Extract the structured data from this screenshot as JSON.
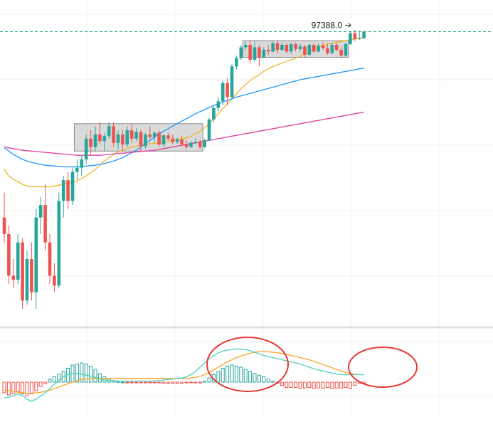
{
  "chart_data": {
    "type": "candlestick",
    "last_price_label": "97388.0",
    "colors": {
      "up": "#26a69a",
      "down": "#ef5350",
      "ma_fast": "#f0b429",
      "ma_mid": "#2196f3",
      "ma_slow": "#e040a0",
      "macd_line": "#4dd0c0",
      "signal_line": "#f5a623",
      "range_box": "#d4d4d4",
      "annotation": "#e53935",
      "last_price_line": "#26a69a"
    },
    "candles_ohlc": [
      [
        75000,
        78000,
        72000,
        73000
      ],
      [
        73000,
        74000,
        67000,
        68000
      ],
      [
        68000,
        70000,
        66500,
        67500
      ],
      [
        67500,
        73000,
        67000,
        72000
      ],
      [
        72000,
        72500,
        64000,
        65000
      ],
      [
        65000,
        71000,
        64500,
        70000
      ],
      [
        70000,
        72000,
        65000,
        66000
      ],
      [
        66000,
        76000,
        64000,
        75000
      ],
      [
        75000,
        77500,
        73000,
        76500
      ],
      [
        76500,
        79000,
        71000,
        72000
      ],
      [
        72000,
        73000,
        67000,
        68000
      ],
      [
        68000,
        69500,
        66000,
        66800
      ],
      [
        66800,
        78000,
        66500,
        77000
      ],
      [
        77000,
        80000,
        75000,
        79500
      ],
      [
        79500,
        80500,
        76000,
        77000
      ],
      [
        77000,
        81000,
        76500,
        80500
      ],
      [
        80500,
        82000,
        79500,
        81000
      ],
      [
        81000,
        82500,
        80000,
        82000
      ],
      [
        82000,
        85000,
        81500,
        84500
      ],
      [
        84500,
        85500,
        82500,
        83500
      ],
      [
        83500,
        86000,
        83000,
        85000
      ],
      [
        85000,
        86500,
        83800,
        84200
      ],
      [
        84200,
        85200,
        83000,
        84800
      ],
      [
        84800,
        86500,
        84500,
        86000
      ],
      [
        86000,
        86500,
        83500,
        84000
      ],
      [
        84000,
        85500,
        83200,
        85000
      ],
      [
        85000,
        85500,
        83000,
        83800
      ],
      [
        83800,
        86000,
        83500,
        85500
      ],
      [
        85500,
        86300,
        84000,
        84500
      ],
      [
        84500,
        85800,
        84200,
        85300
      ],
      [
        85300,
        85600,
        83000,
        83600
      ],
      [
        83600,
        85200,
        83300,
        85000
      ],
      [
        85000,
        86000,
        84500,
        84700
      ],
      [
        84700,
        85400,
        84000,
        85200
      ],
      [
        85200,
        85500,
        83500,
        83800
      ],
      [
        83800,
        85000,
        83600,
        84900
      ],
      [
        84900,
        85200,
        84300,
        84500
      ],
      [
        84500,
        85000,
        83800,
        84100
      ],
      [
        84100,
        84600,
        83900,
        84400
      ],
      [
        84400,
        84800,
        83600,
        83800
      ],
      [
        83800,
        84300,
        83200,
        83500
      ],
      [
        83500,
        84200,
        83400,
        84000
      ],
      [
        84000,
        84500,
        83800,
        84100
      ],
      [
        84100,
        84400,
        83300,
        83500
      ],
      [
        83500,
        84500,
        83400,
        84300
      ],
      [
        84300,
        87000,
        84200,
        86800
      ],
      [
        86800,
        88500,
        86500,
        88200
      ],
      [
        88200,
        89500,
        87800,
        89000
      ],
      [
        89000,
        91500,
        88500,
        91200
      ],
      [
        91200,
        91800,
        88500,
        89500
      ],
      [
        89500,
        93500,
        89200,
        93200
      ],
      [
        93200,
        94500,
        92800,
        94200
      ],
      [
        94200,
        95800,
        94000,
        95500
      ],
      [
        95500,
        96200,
        95200,
        95800
      ],
      [
        95800,
        96400,
        93500,
        94000
      ],
      [
        94000,
        96300,
        93800,
        95500
      ],
      [
        95500,
        95800,
        93200,
        94300
      ],
      [
        94300,
        95500,
        94200,
        95200
      ],
      [
        95200,
        95800,
        94600,
        95000
      ],
      [
        95000,
        96200,
        94900,
        96000
      ],
      [
        96000,
        96300,
        94800,
        95200
      ],
      [
        95200,
        96100,
        95000,
        95800
      ],
      [
        95800,
        96000,
        94800,
        95000
      ],
      [
        95000,
        96000,
        94700,
        95900
      ],
      [
        95900,
        96100,
        95000,
        95300
      ],
      [
        95300,
        95900,
        95000,
        95600
      ],
      [
        95600,
        95800,
        94300,
        94600
      ],
      [
        94600,
        95900,
        94500,
        95800
      ],
      [
        95800,
        96000,
        94800,
        95000
      ],
      [
        95000,
        96000,
        94900,
        95700
      ],
      [
        95700,
        96100,
        95200,
        95400
      ],
      [
        95400,
        95900,
        94600,
        94800
      ],
      [
        94800,
        96000,
        94700,
        95800
      ],
      [
        95800,
        96000,
        95000,
        95200
      ],
      [
        95200,
        95600,
        94300,
        94500
      ],
      [
        94500,
        96100,
        94400,
        95900
      ],
      [
        95900,
        97500,
        95800,
        97200
      ],
      [
        97200,
        97600,
        96200,
        96500
      ],
      [
        96500,
        97500,
        96400,
        96600
      ],
      [
        96600,
        97500,
        96500,
        97388
      ]
    ],
    "range_boxes": [
      {
        "start_index": 16,
        "end_index": 43,
        "price_low": 83000,
        "price_high": 86300
      },
      {
        "start_index": 53,
        "end_index": 75,
        "price_low": 94300,
        "price_high": 96300
      }
    ],
    "moving_averages": [
      {
        "role": "fast",
        "values": [
          80800,
          80000,
          79600,
          79300,
          79000,
          78800,
          78700,
          78700,
          78700,
          78700,
          78700,
          78800,
          78900,
          79000,
          79100,
          79200,
          79400,
          79700,
          80000,
          80400,
          80800,
          81300,
          81800,
          82200,
          82600,
          82900,
          83100,
          83300,
          83500,
          83600,
          83700,
          83800,
          83900,
          83900,
          84000,
          84100,
          84200,
          84300,
          84400,
          84500,
          84600,
          84800,
          85100,
          85400,
          85800,
          86300,
          86900,
          87500,
          88100,
          88700,
          89300,
          89900,
          90500,
          91000,
          91500,
          91900,
          92200,
          92600,
          92900,
          93200,
          93400,
          93600,
          93800,
          94000,
          94200,
          94400,
          94700,
          95000,
          95300,
          95500,
          95700,
          95900,
          96000,
          96100,
          96200,
          96300,
          96400,
          96500,
          96600,
          96700
        ]
      },
      {
        "role": "mid",
        "values": [
          83400,
          83000,
          82600,
          82300,
          82000,
          81800,
          81650,
          81500,
          81400,
          81300,
          81250,
          81200,
          81150,
          81100,
          81100,
          81100,
          81100,
          81150,
          81200,
          81250,
          81300,
          81400,
          81500,
          81650,
          81800,
          82000,
          82200,
          82500,
          82800,
          83100,
          83500,
          83900,
          84300,
          84700,
          85100,
          85400,
          85700,
          86000,
          86300,
          86600,
          86900,
          87200,
          87500,
          87750,
          88000,
          88250,
          88500,
          88700,
          88900,
          89100,
          89300,
          89500,
          89650,
          89800,
          89950,
          90100,
          90250,
          90400,
          90550,
          90700,
          90850,
          91000,
          91150,
          91300,
          91450,
          91600,
          91700,
          91800,
          91900,
          92000,
          92100,
          92200,
          92300,
          92400,
          92500,
          92600,
          92700,
          92800,
          92900,
          93000
        ]
      },
      {
        "role": "slow",
        "values": [
          83500,
          83400,
          83300,
          83200,
          83100,
          83050,
          83000,
          82950,
          82900,
          82850,
          82800,
          82750,
          82700,
          82650,
          82600,
          82550,
          82500,
          82500,
          82500,
          82500,
          82500,
          82500,
          82550,
          82600,
          82650,
          82700,
          82750,
          82800,
          82850,
          82900,
          82950,
          83000,
          83050,
          83100,
          83200,
          83300,
          83400,
          83500,
          83600,
          83700,
          83800,
          83900,
          84000,
          84100,
          84200,
          84300,
          84400,
          84500,
          84600,
          84700,
          84800,
          84900,
          85000,
          85100,
          85200,
          85300,
          85400,
          85500,
          85600,
          85700,
          85800,
          85900,
          86000,
          86100,
          86200,
          86300,
          86400,
          86500,
          86600,
          86700,
          86800,
          86900,
          87000,
          87100,
          87200,
          87300,
          87400,
          87500,
          87600,
          87700
        ]
      }
    ],
    "macd": {
      "histogram": [
        -2.0,
        -2.4,
        -2.2,
        -1.8,
        -2.2,
        -2.6,
        -2.2,
        -1.6,
        -0.8,
        -0.3,
        0.5,
        1.0,
        1.5,
        2.0,
        2.6,
        3.2,
        3.4,
        3.6,
        3.4,
        3.0,
        2.4,
        1.6,
        1.0,
        0.6,
        0.3,
        0.1,
        0.0,
        -0.1,
        -0.1,
        -0.1,
        -0.1,
        -0.1,
        -0.1,
        -0.1,
        -0.15,
        -0.2,
        -0.2,
        -0.2,
        -0.2,
        -0.2,
        -0.15,
        -0.1,
        -0.1,
        -0.1,
        0.2,
        0.8,
        1.4,
        2.0,
        2.6,
        3.0,
        3.2,
        3.0,
        2.8,
        2.4,
        2.0,
        1.6,
        1.3,
        1.0,
        0.6,
        0.2,
        -0.2,
        -0.6,
        -1.0,
        -1.0,
        -1.0,
        -1.2,
        -1.1,
        -1.0,
        -1.2,
        -1.1,
        -1.1,
        -1.0,
        -1.2,
        -1.1,
        -1.1,
        -1.0,
        -1.2,
        -0.6,
        -0.2,
        -0.2
      ],
      "macd_line": [
        -3.0,
        -2.8,
        -2.6,
        -2.2,
        -2.5,
        -3.2,
        -3.6,
        -3.2,
        -2.6,
        -2.0,
        -1.2,
        -0.4,
        0.4,
        1.0,
        1.4,
        1.6,
        1.6,
        1.5,
        1.3,
        1.1,
        0.9,
        0.6,
        0.4,
        0.3,
        0.3,
        0.2,
        0.2,
        0.2,
        0.2,
        0.2,
        0.2,
        0.2,
        0.2,
        0.2,
        0.3,
        0.4,
        0.5,
        0.6,
        0.7,
        0.8,
        1.0,
        1.4,
        2.0,
        2.8,
        3.6,
        4.4,
        5.0,
        5.5,
        5.8,
        6.0,
        6.1,
        6.2,
        6.2,
        6.1,
        5.9,
        5.6,
        5.3,
        5.0,
        4.8,
        4.6,
        4.4,
        4.2,
        4.0,
        3.8,
        3.6,
        3.4,
        3.1,
        2.8,
        2.5,
        2.3,
        2.1,
        1.9,
        1.7,
        1.5,
        1.4,
        1.4,
        1.4,
        1.4,
        1.4,
        1.4
      ],
      "signal_line": [
        -1.5,
        -1.6,
        -1.7,
        -1.9,
        -2.0,
        -2.1,
        -2.1,
        -2.0,
        -1.9,
        -1.7,
        -1.5,
        -1.2,
        -0.9,
        -0.6,
        -0.3,
        0.0,
        0.3,
        0.5,
        0.6,
        0.7,
        0.7,
        0.7,
        0.7,
        0.7,
        0.7,
        0.7,
        0.7,
        0.7,
        0.7,
        0.7,
        0.7,
        0.7,
        0.7,
        0.7,
        0.7,
        0.7,
        0.7,
        0.7,
        0.7,
        0.7,
        0.7,
        0.8,
        0.9,
        1.1,
        1.4,
        1.8,
        2.3,
        2.8,
        3.3,
        3.8,
        4.2,
        4.6,
        4.9,
        5.2,
        5.4,
        5.6,
        5.7,
        5.7,
        5.7,
        5.6,
        5.5,
        5.4,
        5.2,
        5.0,
        4.8,
        4.6,
        4.4,
        4.2,
        3.9,
        3.6,
        3.3,
        3.0,
        2.7,
        2.4,
        2.1,
        1.8,
        1.6,
        1.5,
        1.4,
        1.4
      ]
    }
  }
}
